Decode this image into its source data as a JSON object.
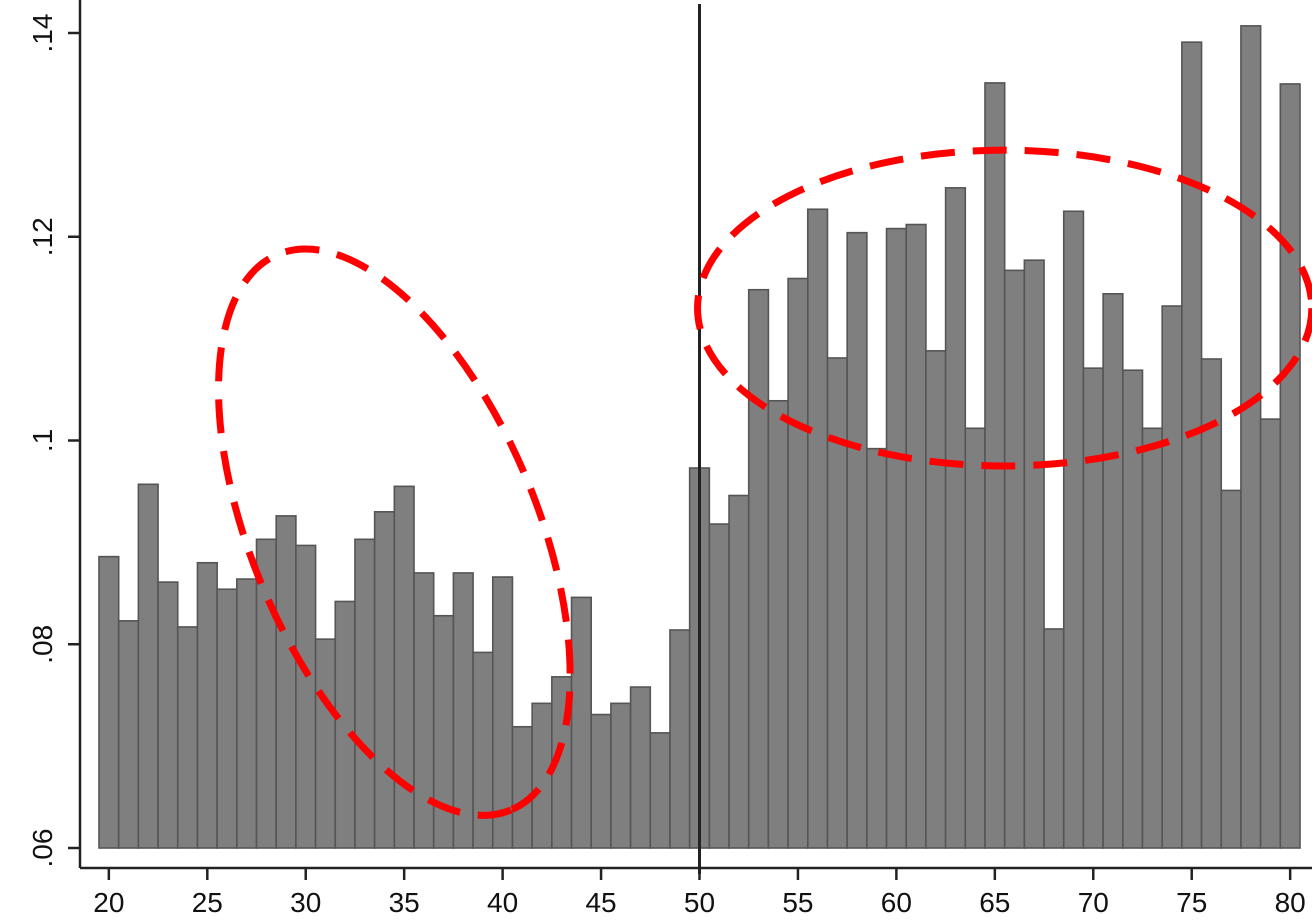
{
  "chart_data": {
    "type": "bar",
    "title": "",
    "xlabel": "",
    "ylabel": "",
    "xlim": [
      19,
      81
    ],
    "ylim": [
      0.06,
      0.145
    ],
    "grid": false,
    "x_ticks": [
      {
        "value": 20,
        "label": "20"
      },
      {
        "value": 25,
        "label": "25"
      },
      {
        "value": 30,
        "label": "30"
      },
      {
        "value": 35,
        "label": "35"
      },
      {
        "value": 40,
        "label": "40"
      },
      {
        "value": 45,
        "label": "45"
      },
      {
        "value": 50,
        "label": "50"
      },
      {
        "value": 55,
        "label": "55"
      },
      {
        "value": 60,
        "label": "60"
      },
      {
        "value": 65,
        "label": "65"
      },
      {
        "value": 70,
        "label": "70"
      },
      {
        "value": 75,
        "label": "75"
      },
      {
        "value": 80,
        "label": "80"
      }
    ],
    "y_ticks": [
      {
        "value": 0.06,
        "label": ".06"
      },
      {
        "value": 0.08,
        "label": ".08"
      },
      {
        "value": 0.1,
        "label": ".1"
      },
      {
        "value": 0.12,
        "label": ".12"
      },
      {
        "value": 0.14,
        "label": ".14"
      }
    ],
    "cutoff_x": 50,
    "bar_color": "#7f7f7f",
    "x": [
      20,
      21,
      22,
      23,
      24,
      25,
      26,
      27,
      28,
      29,
      30,
      31,
      32,
      33,
      34,
      35,
      36,
      37,
      38,
      39,
      40,
      41,
      42,
      43,
      44,
      45,
      46,
      47,
      48,
      49,
      50,
      51,
      52,
      53,
      54,
      55,
      56,
      57,
      58,
      59,
      60,
      61,
      62,
      63,
      64,
      65,
      66,
      67,
      68,
      69,
      70,
      71,
      72,
      73,
      74,
      75,
      76,
      77,
      78,
      79,
      80
    ],
    "values": [
      0.0886,
      0.0823,
      0.0957,
      0.0861,
      0.0817,
      0.088,
      0.0854,
      0.0864,
      0.0903,
      0.0926,
      0.0897,
      0.0805,
      0.0842,
      0.0903,
      0.093,
      0.0955,
      0.087,
      0.0828,
      0.087,
      0.0792,
      0.0866,
      0.0719,
      0.0742,
      0.0768,
      0.0846,
      0.0731,
      0.0742,
      0.0758,
      0.0713,
      0.0814,
      0.0973,
      0.0918,
      0.0946,
      0.1148,
      0.1039,
      0.1159,
      0.1227,
      0.1081,
      0.1204,
      0.0992,
      0.1208,
      0.1212,
      0.1088,
      0.1248,
      0.1012,
      0.1351,
      0.1167,
      0.1177,
      0.0815,
      0.1225,
      0.1071,
      0.1144,
      0.1069,
      0.1012,
      0.1132,
      0.1391,
      0.108,
      0.0951,
      0.1407,
      0.1021,
      0.135
    ],
    "annotations": [
      {
        "shape": "dashed-ellipse",
        "color": "#ff0000",
        "cx": 34.5,
        "cy": 0.091,
        "rx": 15.3,
        "ry": 0.014,
        "rotation": 0.0046
      },
      {
        "shape": "dashed-ellipse",
        "color": "#ff0000",
        "cx": 65.5,
        "cy": 0.113,
        "rx": 15.6,
        "ry": 0.0155,
        "rotation": 0.0
      }
    ]
  }
}
